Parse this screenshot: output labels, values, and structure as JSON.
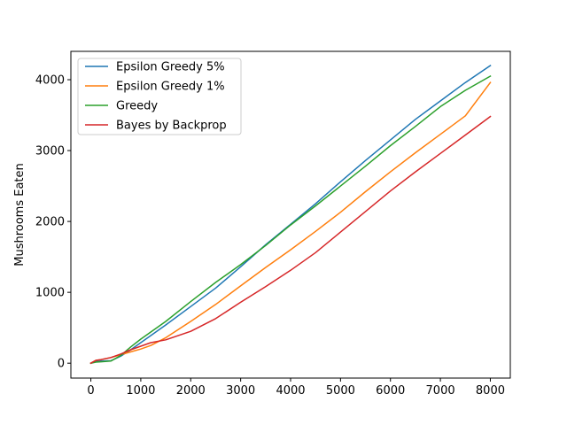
{
  "chart_data": {
    "type": "line",
    "xlabel": "",
    "ylabel": "Mushrooms Eaten",
    "xlim": [
      -400,
      8400
    ],
    "ylim": [
      -210,
      4400
    ],
    "xticks": [
      0,
      1000,
      2000,
      3000,
      4000,
      5000,
      6000,
      7000,
      8000
    ],
    "yticks": [
      0,
      1000,
      2000,
      3000,
      4000
    ],
    "grid": false,
    "legend": "upper-left",
    "series": [
      {
        "name": "Epsilon Greedy 5%",
        "color": "#1f77b4",
        "x": [
          0,
          100,
          200,
          400,
          600,
          800,
          1000,
          1200,
          1500,
          2000,
          2500,
          3000,
          3500,
          4000,
          4500,
          5000,
          5500,
          6000,
          6500,
          7000,
          7500,
          8000
        ],
        "y": [
          0,
          25,
          30,
          35,
          100,
          190,
          290,
          390,
          540,
          800,
          1060,
          1360,
          1670,
          1960,
          2250,
          2560,
          2860,
          3150,
          3440,
          3700,
          3960,
          4200
        ]
      },
      {
        "name": "Epsilon Greedy 1%",
        "color": "#ff7f0e",
        "x": [
          0,
          100,
          200,
          400,
          600,
          800,
          1000,
          1200,
          1500,
          2000,
          2500,
          3000,
          3500,
          4000,
          4500,
          5000,
          5500,
          6000,
          6500,
          7000,
          7500,
          8000
        ],
        "y": [
          0,
          40,
          50,
          80,
          120,
          160,
          200,
          250,
          360,
          590,
          830,
          1090,
          1350,
          1600,
          1860,
          2130,
          2420,
          2700,
          2970,
          3230,
          3490,
          3960
        ]
      },
      {
        "name": "Greedy",
        "color": "#2ca02c",
        "x": [
          0,
          100,
          200,
          400,
          600,
          800,
          1000,
          1200,
          1500,
          2000,
          2500,
          3000,
          3500,
          4000,
          4500,
          5000,
          5500,
          6000,
          6500,
          7000,
          7500,
          8000
        ],
        "y": [
          0,
          15,
          20,
          30,
          110,
          230,
          340,
          440,
          590,
          870,
          1140,
          1390,
          1660,
          1950,
          2220,
          2500,
          2780,
          3070,
          3340,
          3620,
          3850,
          4050
        ]
      },
      {
        "name": "Bayes by Backprop",
        "color": "#d62728",
        "x": [
          0,
          100,
          200,
          400,
          600,
          800,
          1000,
          1200,
          1500,
          2000,
          2500,
          3000,
          3500,
          4000,
          4500,
          5000,
          5500,
          6000,
          6500,
          7000,
          7500,
          8000
        ],
        "y": [
          0,
          40,
          50,
          80,
          130,
          190,
          240,
          290,
          330,
          450,
          630,
          860,
          1080,
          1310,
          1560,
          1850,
          2140,
          2430,
          2700,
          2960,
          3220,
          3480
        ]
      }
    ]
  }
}
